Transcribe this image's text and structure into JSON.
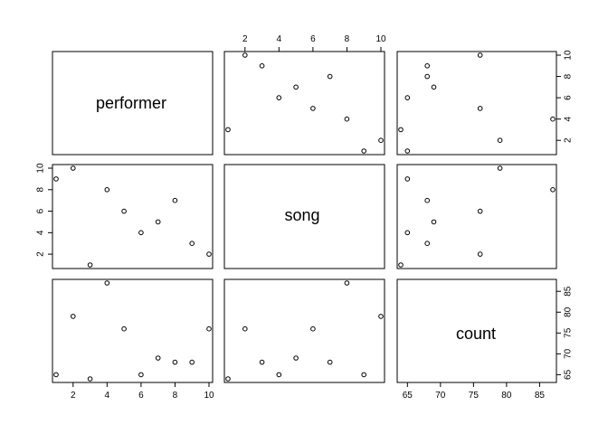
{
  "chart_data": {
    "type": "scatter",
    "subtype": "pairs-matrix",
    "variables": [
      "performer",
      "song",
      "count"
    ],
    "data": {
      "performer": [
        1,
        2,
        3,
        4,
        5,
        6,
        7,
        8,
        9,
        10
      ],
      "song": [
        9,
        10,
        1,
        8,
        6,
        4,
        5,
        7,
        3,
        2
      ],
      "count": [
        65,
        79,
        64,
        87,
        76,
        65,
        69,
        68,
        68,
        76
      ]
    },
    "ticks": {
      "performer": [
        2,
        4,
        6,
        8,
        10
      ],
      "song": [
        2,
        4,
        6,
        8,
        10
      ],
      "count": [
        65,
        70,
        75,
        80,
        85
      ]
    },
    "ranges": {
      "performer": [
        1,
        10
      ],
      "song": [
        1,
        10
      ],
      "count": [
        64,
        87
      ]
    },
    "grid": false
  }
}
